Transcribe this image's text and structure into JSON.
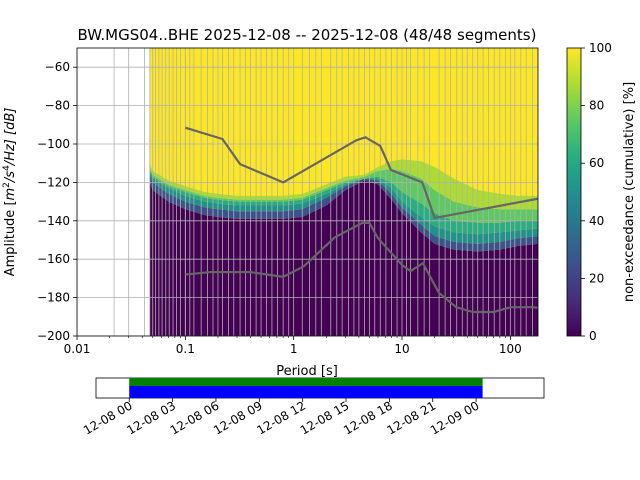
{
  "chart_data": [
    {
      "type": "heatmap",
      "title": "BW.MGS04..BHE   2025-12-08 -- 2025-12-08  (48/48 segments)",
      "xlabel": "Period [s]",
      "ylabel": "Amplitude [$m^2/s^4/Hz$] [dB]",
      "ylabel_parts": {
        "prefix": "Amplitude [",
        "unit": "m",
        "sup1": "2",
        "mid": "/s",
        "sup2": "4",
        "end": "/Hz] [dB]"
      },
      "x_scale": "log",
      "xlim": [
        0.01,
        180
      ],
      "ylim": [
        -200,
        -50
      ],
      "x_ticks": [
        0.01,
        0.1,
        1,
        10,
        100
      ],
      "x_tick_labels": [
        "0.01",
        "0.1",
        "1",
        "10",
        "100"
      ],
      "y_ticks": [
        -200,
        -180,
        -160,
        -140,
        -120,
        -100,
        -80,
        -60
      ],
      "y_tick_labels": [
        "−200",
        "−180",
        "−160",
        "−140",
        "−120",
        "−100",
        "−80",
        "−60"
      ],
      "grid": true,
      "colorbar": {
        "label": "non-exceedance (cumulative) [%]",
        "range": [
          0,
          100
        ],
        "ticks": [
          0,
          20,
          40,
          60,
          80,
          100
        ],
        "tick_labels": [
          "0",
          "20",
          "40",
          "60",
          "80",
          "100"
        ],
        "colormap": "viridis",
        "colors": [
          "#440154",
          "#472d7b",
          "#3b528b",
          "#2c728e",
          "#21918c",
          "#28ae80",
          "#5ec962",
          "#addc30",
          "#fde725"
        ]
      },
      "data_start_period": 0.047,
      "period_bin_lines": [
        0.022,
        0.03,
        0.042,
        0.047,
        0.05,
        0.053,
        0.057,
        0.061,
        0.066,
        0.071,
        0.077,
        0.083,
        0.09,
        0.1,
        0.11,
        0.12,
        0.14,
        0.16,
        0.18,
        0.2,
        0.22,
        0.25,
        0.28,
        0.32,
        0.36,
        0.4,
        0.45,
        0.5,
        0.56,
        0.63,
        0.71,
        0.8,
        0.9,
        1.2,
        1.4,
        1.6,
        1.8,
        2.2,
        2.5,
        2.8,
        3.2,
        3.6,
        4.0,
        4.5,
        5.0,
        5.6,
        6.3,
        7.1,
        8.0,
        9.0,
        11,
        12,
        14,
        16,
        18,
        22,
        25,
        28,
        32,
        36,
        40,
        45,
        50,
        56,
        63,
        71,
        80,
        90,
        110,
        125,
        140,
        160
      ],
      "percentile_bands": {
        "period": [
          0.047,
          0.05,
          0.07,
          0.1,
          0.15,
          0.2,
          0.3,
          0.5,
          0.8,
          1.2,
          2,
          3,
          4.5,
          6,
          8,
          10,
          15,
          20,
          30,
          50,
          80,
          120,
          180
        ],
        "p0": [
          -200,
          -200,
          -200,
          -200,
          -200,
          -200,
          -200,
          -200,
          -200,
          -200,
          -200,
          -200,
          -200,
          -200,
          -200,
          -200,
          -200,
          -200,
          -200,
          -200,
          -200,
          -200,
          -200
        ],
        "p10": [
          -120,
          -124,
          -130,
          -134,
          -137,
          -138,
          -139,
          -139,
          -139,
          -138,
          -132,
          -124,
          -119,
          -121,
          -129,
          -136,
          -146,
          -152,
          -155,
          -156,
          -155,
          -153,
          -152
        ],
        "p25": [
          -116,
          -120,
          -126,
          -130,
          -133,
          -134,
          -135,
          -135,
          -135,
          -134,
          -128,
          -122,
          -118,
          -119,
          -126,
          -133,
          -142,
          -148,
          -151,
          -152,
          -151,
          -149,
          -148
        ],
        "p50": [
          -114,
          -118,
          -123,
          -127,
          -130,
          -131,
          -132,
          -132,
          -132,
          -131,
          -126,
          -121,
          -118,
          -118,
          -123,
          -130,
          -138,
          -143,
          -146,
          -147,
          -146,
          -145,
          -144
        ],
        "p75": [
          -113,
          -117,
          -122,
          -125,
          -128,
          -129,
          -130,
          -130,
          -130,
          -129,
          -124,
          -120,
          -118,
          -117,
          -120,
          -125,
          -131,
          -136,
          -140,
          -141,
          -141,
          -140,
          -140
        ],
        "p90": [
          -112,
          -116,
          -121,
          -124,
          -127,
          -128,
          -129,
          -129,
          -129,
          -128,
          -123,
          -119,
          -117,
          -114,
          -113,
          -114,
          -118,
          -124,
          -130,
          -133,
          -134,
          -134,
          -134
        ],
        "p100": [
          -110,
          -114,
          -119,
          -122,
          -125,
          -126,
          -127,
          -127,
          -127,
          -126,
          -121,
          -117,
          -116,
          -112,
          -109,
          -108,
          -109,
          -112,
          -118,
          -124,
          -126,
          -127,
          -127
        ]
      },
      "noise_models": [
        {
          "name": "high",
          "points": [
            [
              0.1,
              -91.5
            ],
            [
              0.22,
              -97.4
            ],
            [
              0.32,
              -110.5
            ],
            [
              0.8,
              -120
            ],
            [
              3.8,
              -98
            ],
            [
              4.6,
              -96.5
            ],
            [
              6.3,
              -101
            ],
            [
              7.9,
              -113.5
            ],
            [
              15.4,
              -120
            ],
            [
              20,
              -138.5
            ],
            [
              180,
              -128.5
            ]
          ]
        },
        {
          "name": "low",
          "points": [
            [
              0.1,
              -168
            ],
            [
              0.17,
              -166.7
            ],
            [
              0.4,
              -166.7
            ],
            [
              0.8,
              -169.2
            ],
            [
              1.24,
              -163.7
            ],
            [
              2.4,
              -148.6
            ],
            [
              4.3,
              -141.1
            ],
            [
              5.0,
              -141.1
            ],
            [
              6.0,
              -149
            ],
            [
              10,
              -163
            ],
            [
              12,
              -166.2
            ],
            [
              15.6,
              -162.1
            ],
            [
              21.9,
              -177.5
            ],
            [
              31.6,
              -185
            ],
            [
              45,
              -187.5
            ],
            [
              70,
              -187.5
            ],
            [
              101,
              -185
            ],
            [
              154,
              -185
            ],
            [
              180,
              -185.3
            ]
          ]
        }
      ]
    },
    {
      "type": "timeline",
      "x_start_label": "2025-12-08T00:00",
      "x_end_label": "2025-12-09T00:00",
      "xlim_hours": [
        -2.3,
        28.7
      ],
      "ticks_hours": [
        0,
        3,
        6,
        9,
        12,
        15,
        18,
        21,
        24
      ],
      "tick_labels": [
        "12-08 00",
        "12-08 03",
        "12-08 06",
        "12-08 09",
        "12-08 12",
        "12-08 15",
        "12-08 18",
        "12-08 21",
        "12-09 00"
      ],
      "data_coverage_hours": [
        0,
        24.45
      ],
      "used_coverage_hours": [
        0,
        24.45
      ],
      "coverage_colors": {
        "data": "#008000",
        "used": "#0000ff"
      }
    }
  ]
}
